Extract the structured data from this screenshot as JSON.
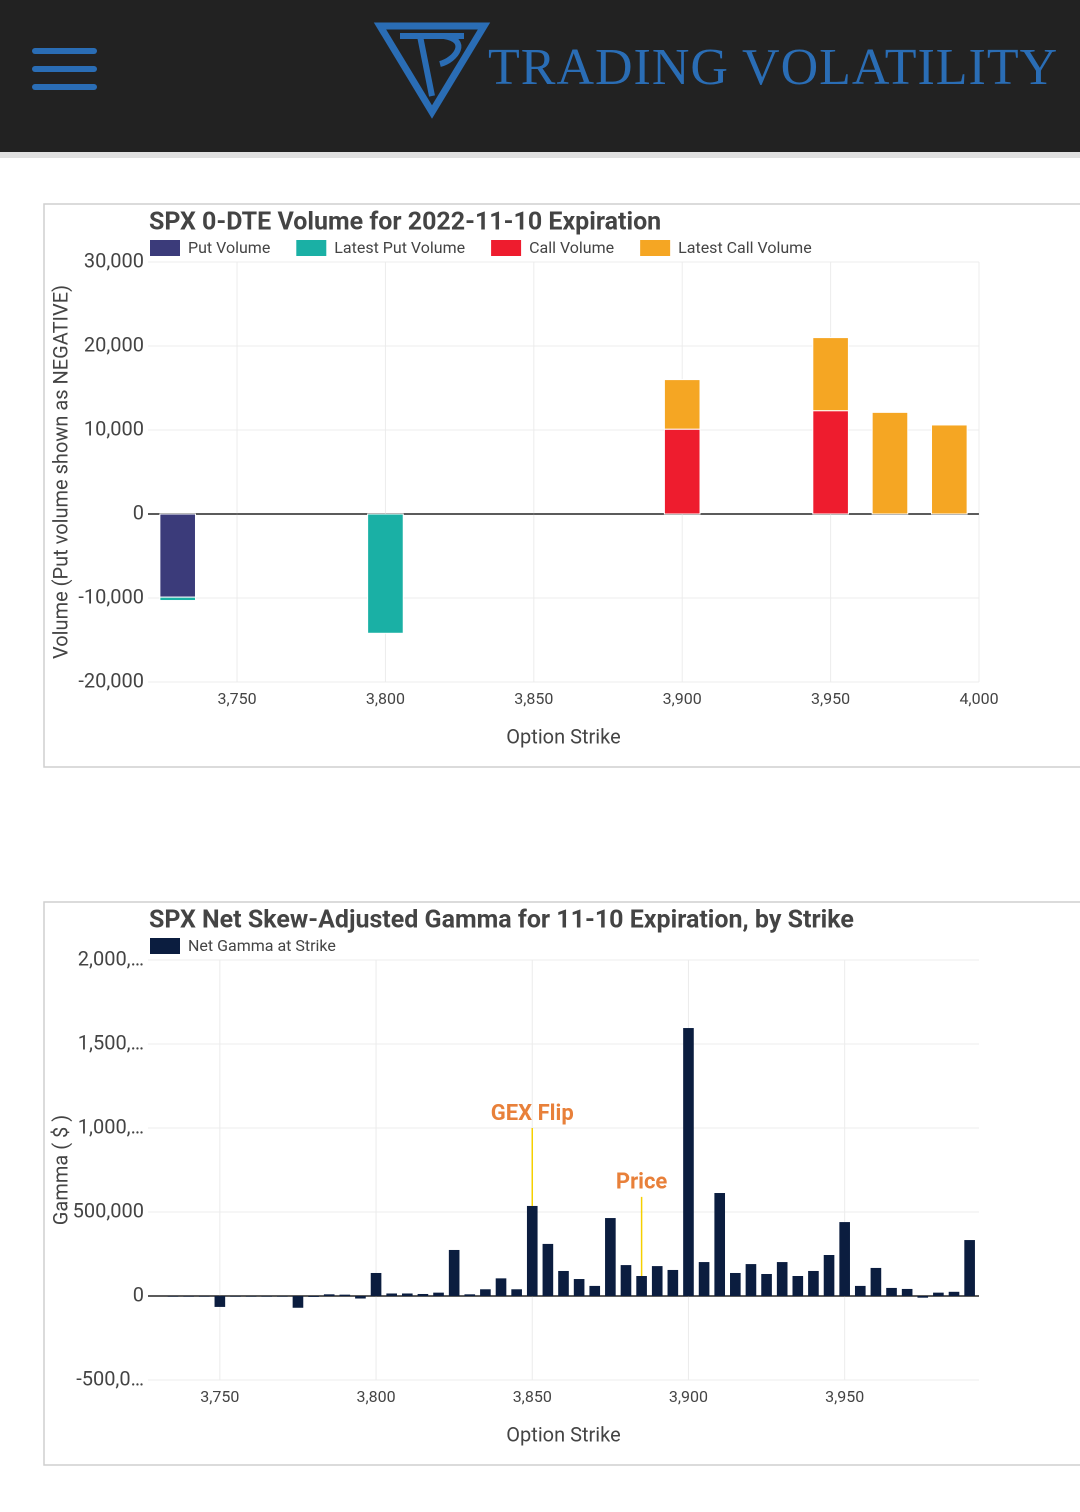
{
  "header": {
    "brand": "TRADING VOLATILITY"
  },
  "chart_data": [
    {
      "type": "bar",
      "stacked": true,
      "title": "SPX 0-DTE Volume for 2022-11-10 Expiration",
      "x_label": "Option Strike",
      "y_label": "Volume (Put volume shown as NEGATIVE)",
      "x": [
        3730,
        3800,
        3900,
        3950,
        3970,
        3990
      ],
      "series": [
        {
          "name": "Put Volume",
          "color": "#3b3b7a",
          "values": [
            -9900,
            null,
            null,
            null,
            null,
            null
          ]
        },
        {
          "name": "Latest Put Volume",
          "color": "#1ab0a5",
          "values": [
            -400,
            -14200,
            null,
            null,
            null,
            null
          ]
        },
        {
          "name": "Call Volume",
          "color": "#ee1c2e",
          "values": [
            null,
            null,
            10100,
            12300,
            null,
            null
          ]
        },
        {
          "name": "Latest Call Volume",
          "color": "#f5a623",
          "values": [
            null,
            null,
            5900,
            8700,
            12100,
            10600
          ]
        }
      ],
      "xlim": [
        3720,
        4000
      ],
      "xticks": [
        {
          "value": 3750,
          "label": "3,750"
        },
        {
          "value": 3800,
          "label": "3,800"
        },
        {
          "value": 3850,
          "label": "3,850"
        },
        {
          "value": 3900,
          "label": "3,900"
        },
        {
          "value": 3950,
          "label": "3,950"
        },
        {
          "value": 4000,
          "label": "4,000"
        }
      ],
      "ylim": [
        -20000,
        30000
      ],
      "yticks": [
        {
          "value": -20000,
          "label": "-20,000"
        },
        {
          "value": -10000,
          "label": "-10,000"
        },
        0,
        {
          "value": 10000,
          "label": "10,000"
        },
        {
          "value": 20000,
          "label": "20,000"
        },
        {
          "value": 30000,
          "label": "30,000"
        }
      ],
      "grid": true
    },
    {
      "type": "bar",
      "stacked": false,
      "title": "SPX Net Skew-Adjusted Gamma for 11-10 Expiration, by Strike",
      "x_label": "Option Strike",
      "y_label": "Gamma ( $ )",
      "x": [
        3735,
        3740,
        3745,
        3750,
        3755,
        3760,
        3765,
        3770,
        3775,
        3780,
        3785,
        3790,
        3795,
        3800,
        3805,
        3810,
        3815,
        3820,
        3825,
        3830,
        3835,
        3840,
        3845,
        3850,
        3855,
        3860,
        3865,
        3870,
        3875,
        3880,
        3885,
        3890,
        3895,
        3900,
        3905,
        3910,
        3915,
        3920,
        3925,
        3930,
        3935,
        3940,
        3945,
        3950,
        3955,
        3960,
        3965,
        3970,
        3975,
        3980,
        3985,
        3990
      ],
      "series": [
        {
          "name": "Net Gamma at Strike",
          "color": "#0b1d3f",
          "values": [
            -2000,
            -3000,
            0,
            -65000,
            0,
            0,
            0,
            0,
            -70000,
            -5000,
            10000,
            8000,
            -15000,
            137000,
            15000,
            15000,
            12000,
            20000,
            274000,
            10000,
            40000,
            105000,
            40000,
            536000,
            310000,
            149000,
            101000,
            60000,
            464000,
            184000,
            119000,
            178000,
            155000,
            1595000,
            202000,
            613000,
            137000,
            190000,
            131000,
            202000,
            119000,
            149000,
            244000,
            440000,
            60000,
            167000,
            48000,
            42000,
            -10000,
            20000,
            25000,
            333000
          ]
        }
      ],
      "annotations": [
        {
          "text": "GEX Flip",
          "x": 3850,
          "y": 1000000
        },
        {
          "text": "Price",
          "x": 3885,
          "y": 590000
        }
      ],
      "xlim": [
        3727,
        3993
      ],
      "xticks": [
        {
          "value": 3750,
          "label": "3,750"
        },
        {
          "value": 3800,
          "label": "3,800"
        },
        {
          "value": 3850,
          "label": "3,850"
        },
        {
          "value": 3900,
          "label": "3,900"
        },
        {
          "value": 3950,
          "label": "3,950"
        }
      ],
      "ylim": [
        -500000,
        2000000
      ],
      "yticks": [
        {
          "value": -500000,
          "label": "-500,0…"
        },
        0,
        {
          "value": 500000,
          "label": "500,000"
        },
        {
          "value": 1000000,
          "label": "1,000,…"
        },
        {
          "value": 1500000,
          "label": "1,500,…"
        },
        {
          "value": 2000000,
          "label": "2,000,…"
        }
      ],
      "grid": true
    }
  ]
}
